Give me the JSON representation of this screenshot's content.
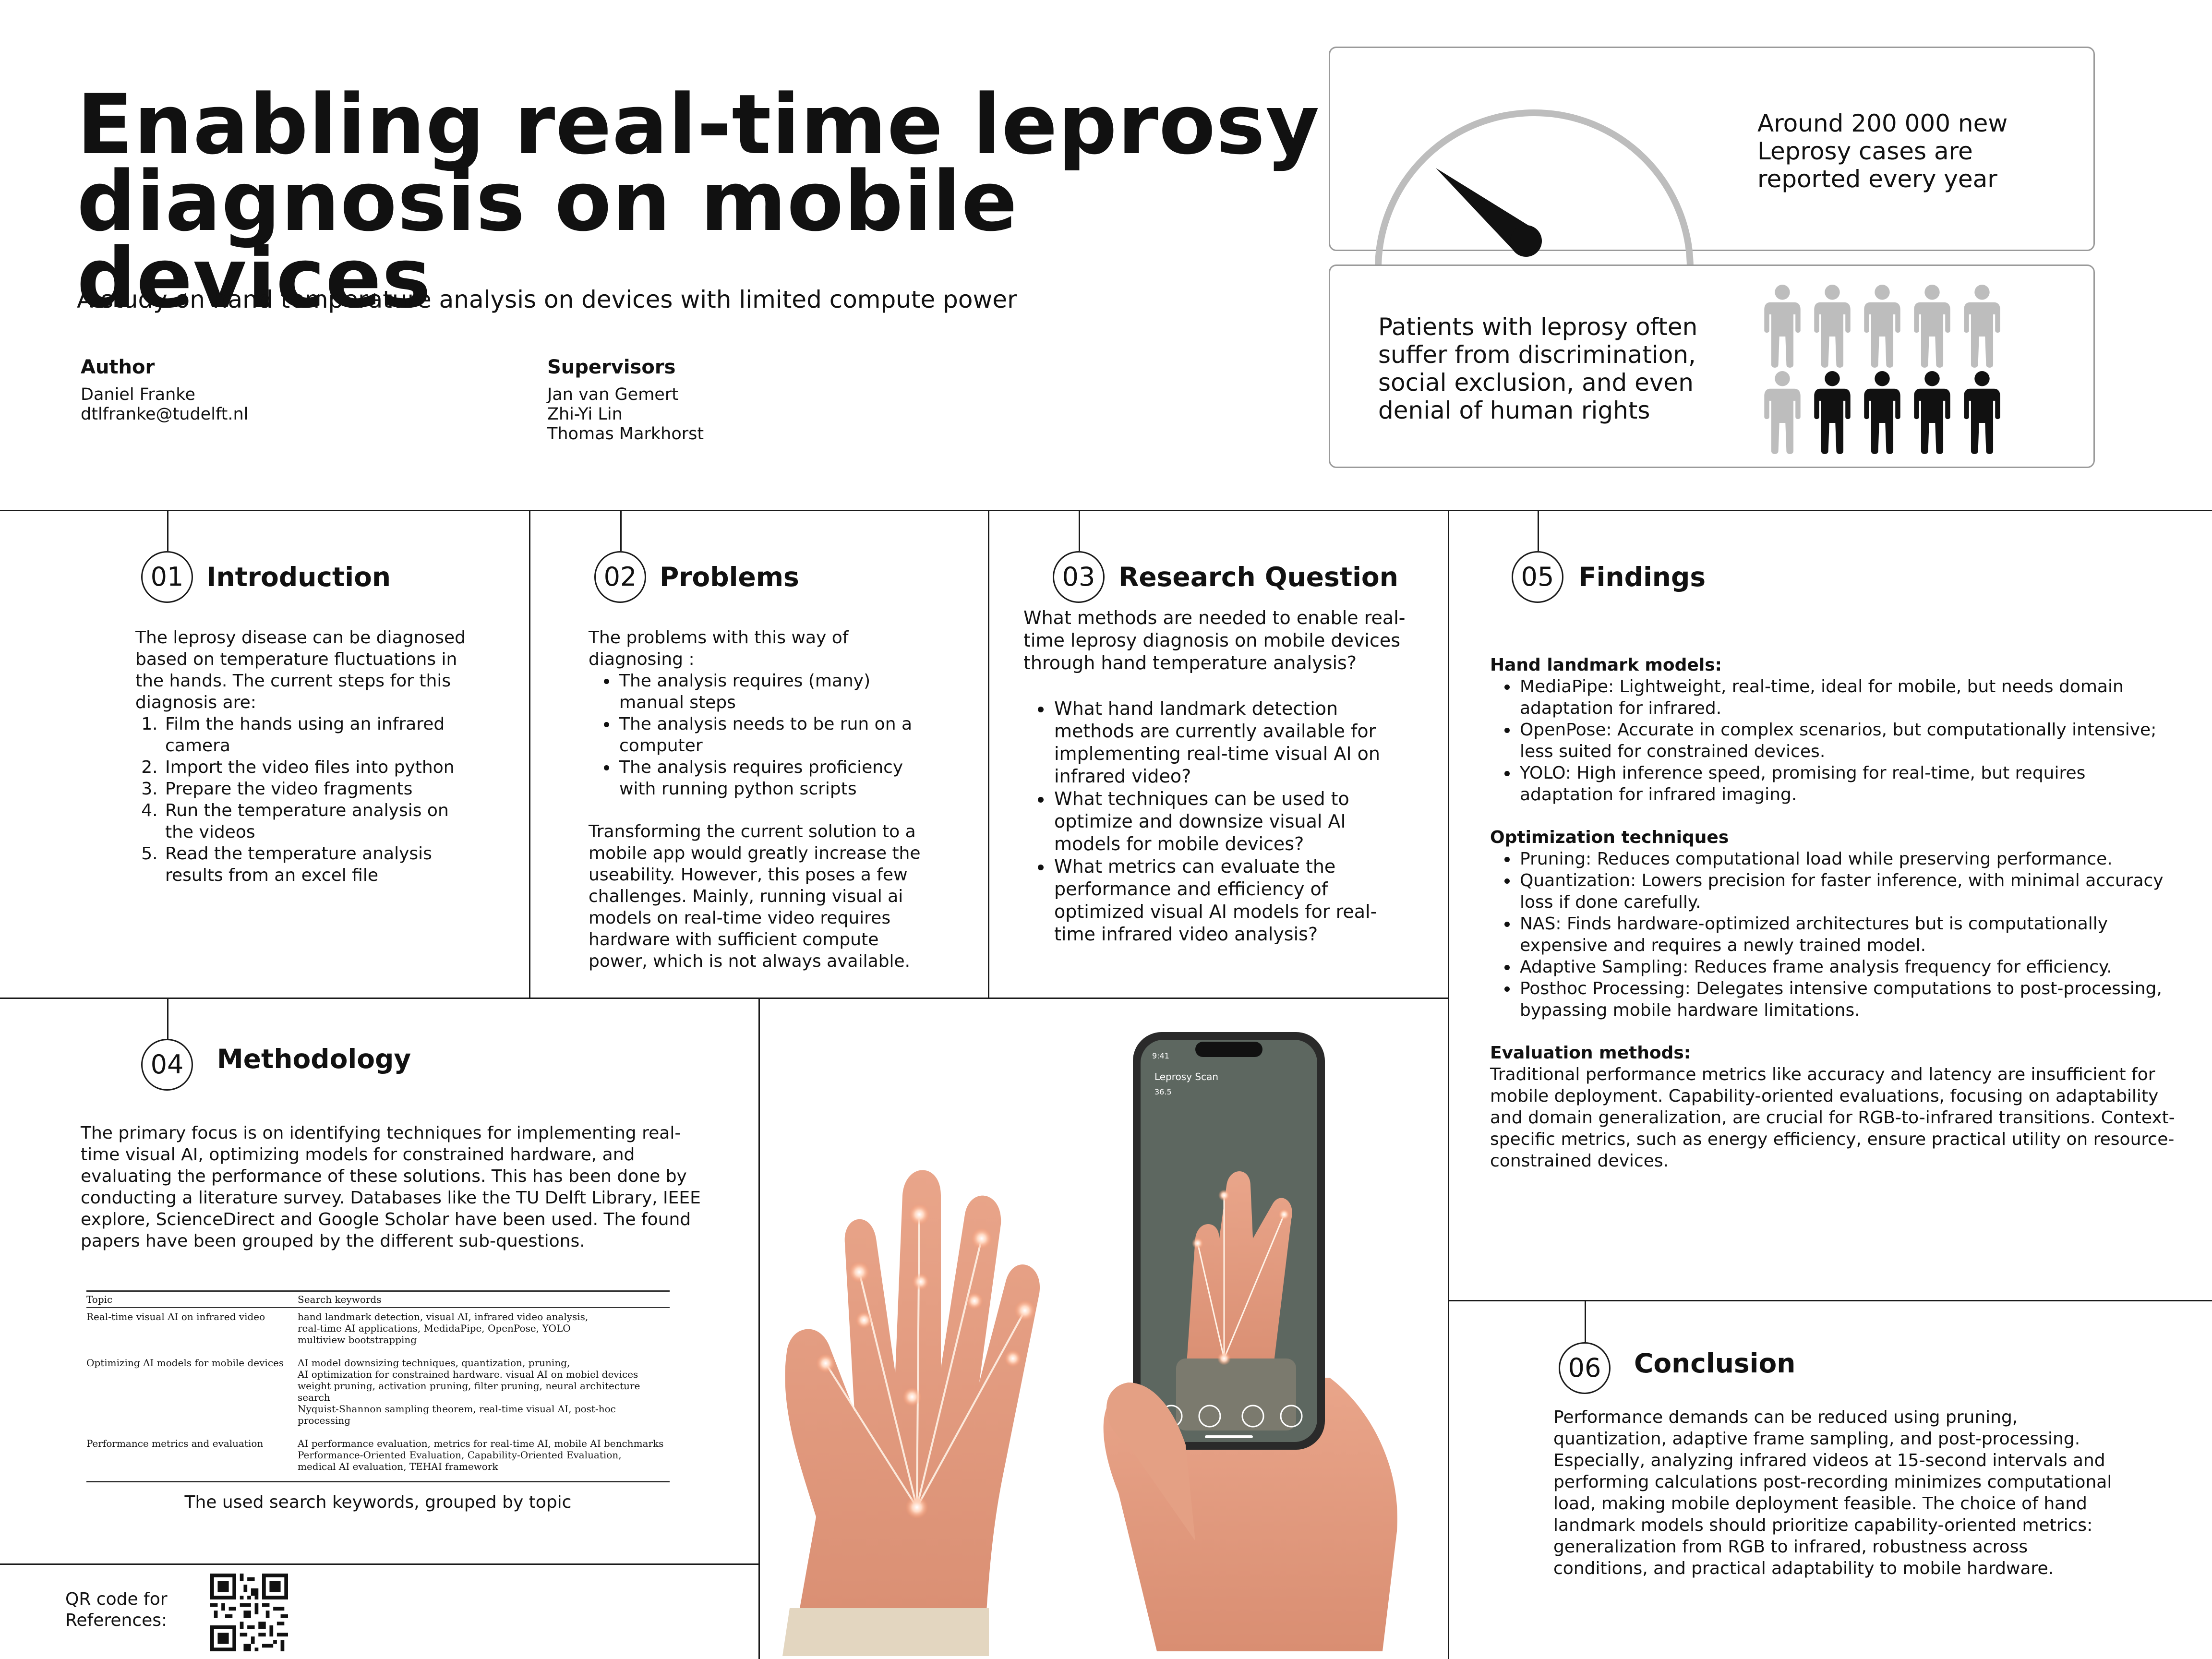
{
  "header": {
    "title_line1": "Enabling real-time leprosy",
    "title_line2": "diagnosis on mobile devices",
    "subtitle": "A study on hand temperature analysis on devices with limited compute power",
    "author_heading": "Author",
    "author_name": "Daniel Franke",
    "author_email": "dtlfranke@tudelft.nl",
    "supervisors_heading": "Supervisors",
    "supervisors": [
      "Jan van Gemert",
      "Zhi-Yi Lin",
      "Thomas Markhorst"
    ]
  },
  "stats": {
    "cases_lines": [
      "Around 200 000 new",
      "Leprosy cases are",
      "reported every year"
    ],
    "discrimination_lines": [
      "Patients with leprosy often",
      "suffer from discrimination,",
      "social exclusion, and even",
      "denial of human rights"
    ],
    "gauge_icon": "gauge-icon",
    "people_icon": "person-icon",
    "people_total": 10,
    "people_highlighted": 4,
    "gray_color": "#bdbdbd",
    "dark_color": "#111111"
  },
  "sections": {
    "introduction": {
      "number": "01",
      "title": "Introduction",
      "intro": "The leprosy disease can be diagnosed based on temperature fluctuations in the hands. The current steps for this diagnosis are:",
      "steps": [
        "Film the hands using an infrared camera",
        "Import the video files into python",
        "Prepare the video fragments",
        "Run the temperature analysis on the videos",
        "Read the temperature analysis results from an excel file"
      ]
    },
    "problems": {
      "number": "02",
      "title": "Problems",
      "intro": "The problems with this way of diagnosing :",
      "bullets": [
        "The analysis requires (many) manual steps",
        "The analysis needs to be run on a computer",
        "The analysis requires proficiency with running python scripts"
      ],
      "closing": "Transforming the current solution to a mobile app would greatly increase the useability. However, this poses a few challenges. Mainly, running visual ai models on real-time video requires hardware with sufficient compute power, which is not always available."
    },
    "research": {
      "number": "03",
      "title": "Research Question",
      "question": "What methods are needed to enable real-time leprosy diagnosis on mobile devices through hand temperature analysis?",
      "bullets": [
        "What hand landmark detection methods are currently available for implementing real-time visual AI on infrared video?",
        "What techniques can be used to optimize and downsize visual AI models for mobile devices?",
        "What metrics can evaluate the performance and efficiency of optimized visual AI models for real-time infrared video analysis?"
      ]
    },
    "methodology": {
      "number": "04",
      "title": "Methodology",
      "text": "The primary focus is on identifying techniques for implementing real-time visual AI, optimizing models for constrained hardware, and evaluating the performance of these solutions. This has been done by conducting a literature survey. Databases like the TU Delft Library, IEEE explore, ScienceDirect and Google Scholar have been used. The found papers have been grouped by the different sub-questions.",
      "table": {
        "headers": [
          "Topic",
          "Search keywords"
        ],
        "rows": [
          {
            "topic": "Real-time visual AI on infrared video",
            "keywords": [
              "hand landmark detection, visual AI, infrared video analysis,",
              "real-time AI applications, MedidaPipe, OpenPose, YOLO",
              "multiview bootstrapping"
            ]
          },
          {
            "topic": "Optimizing AI models for mobile devices",
            "keywords": [
              "AI model downsizing techniques, quantization, pruning,",
              "AI optimization for constrained hardware. visual AI on mobiel devices",
              "weight pruning, activation pruning, filter pruning, neural architecture search",
              "Nyquist-Shannon sampling theorem, real-time visual AI, post-hoc processing"
            ]
          },
          {
            "topic": "Performance metrics and evaluation",
            "keywords": [
              "AI performance evaluation, metrics for real-time AI, mobile AI benchmarks",
              "Performance-Oriented Evaluation, Capability-Oriented Evaluation,",
              "medical AI evaluation, TEHAI framework"
            ]
          }
        ]
      },
      "caption": "The used search keywords, grouped by topic"
    },
    "findings": {
      "number": "05",
      "title": "Findings",
      "groups": [
        {
          "heading": "Hand landmark models:",
          "bullets": [
            "MediaPipe: Lightweight, real-time, ideal for mobile, but needs domain adaptation for infrared.",
            "OpenPose: Accurate in complex scenarios, but computationally intensive; less suited for constrained devices.",
            "YOLO: High inference speed, promising for real-time, but requires adaptation for infrared imaging."
          ]
        },
        {
          "heading": "Optimization techniques",
          "bullets": [
            "Pruning: Reduces computational load while preserving performance.",
            "Quantization: Lowers precision for faster inference, with minimal accuracy loss if done carefully.",
            "NAS: Finds hardware-optimized architectures but is computationally expensive and requires a newly trained model.",
            "Adaptive Sampling: Reduces frame analysis frequency for efficiency.",
            "Posthoc Processing: Delegates intensive computations to post-processing, bypassing mobile hardware limitations."
          ]
        }
      ],
      "evaluation_heading": "Evaluation methods:",
      "evaluation_text": "Traditional performance metrics like accuracy and latency are insufficient for mobile deployment. Capability-oriented evaluations, focusing on adaptability and domain generalization, are crucial for RGB-to-infrared transitions. Context-specific metrics, such as energy efficiency, ensure practical utility on resource-constrained devices."
    },
    "conclusion": {
      "number": "06",
      "title": "Conclusion",
      "text": "Performance demands can be reduced using pruning, quantization, adaptive frame sampling, and post-processing. Especially, analyzing infrared videos at 15-second intervals and performing calculations post-recording minimizes computational load, making mobile deployment feasible. The choice of hand landmark models should prioritize capability-oriented metrics: generalization from RGB to infrared, robustness across conditions, and practical adaptability to mobile hardware."
    }
  },
  "illustration": {
    "phone_label": "Leprosy Scan",
    "phone_time": "9:41",
    "phone_sub": "36.5"
  },
  "footer": {
    "qr_label_line1": "QR code for",
    "qr_label_line2": "References:"
  }
}
